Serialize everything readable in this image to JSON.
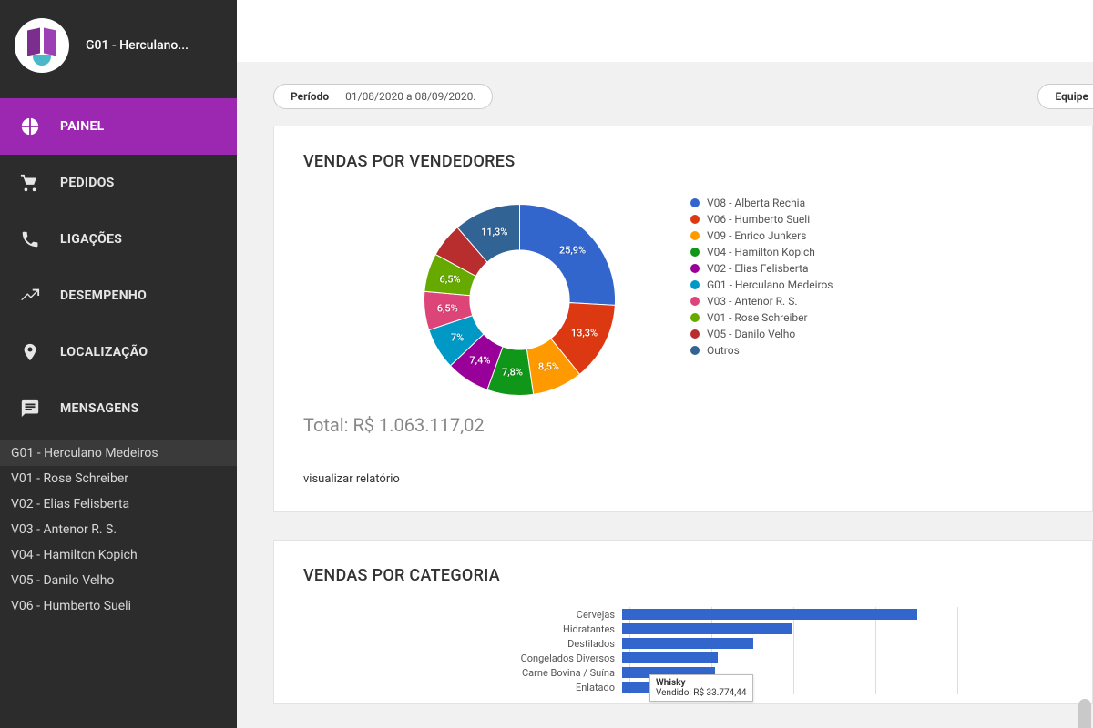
{
  "colors": {
    "sidebar_bg": "#2c2c2c",
    "accent": "#9c27b0",
    "page_bg": "#f1f1f1",
    "card_bg": "#ffffff"
  },
  "profile": {
    "name": "G01 - Herculano..."
  },
  "nav": [
    {
      "label": "PAINEL",
      "icon": "pie",
      "active": true
    },
    {
      "label": "PEDIDOS",
      "icon": "cart",
      "active": false
    },
    {
      "label": "LIGAÇÕES",
      "icon": "phone",
      "active": false
    },
    {
      "label": "DESEMPENHO",
      "icon": "trend",
      "active": false
    },
    {
      "label": "LOCALIZAÇÃO",
      "icon": "pin",
      "active": false
    },
    {
      "label": "MENSAGENS",
      "icon": "message",
      "active": false
    }
  ],
  "sublist": [
    {
      "label": "G01 - Herculano Medeiros",
      "selected": true
    },
    {
      "label": "V01 - Rose Schreiber"
    },
    {
      "label": "V02 - Elias Felisberta"
    },
    {
      "label": "V03 - Antenor R. S."
    },
    {
      "label": "V04 - Hamilton Kopich"
    },
    {
      "label": "V05 - Danilo Velho"
    },
    {
      "label": "V06 - Humberto Sueli"
    }
  ],
  "filters": {
    "period_label": "Período",
    "period_value": "01/08/2020 a 08/09/2020.",
    "team_label": "Equipe"
  },
  "vendas_vendedores": {
    "title": "VENDAS POR VENDEDORES",
    "type": "donut",
    "inner_radius_ratio": 0.52,
    "background_color": "#ffffff",
    "slices": [
      {
        "label": "V08 - Alberta Rechia",
        "pct": 25.9,
        "color": "#3366cc",
        "pct_text": "25,9%"
      },
      {
        "label": "V06 - Humberto Sueli",
        "pct": 13.3,
        "color": "#dc3912",
        "pct_text": "13,3%"
      },
      {
        "label": "V09 - Enrico Junkers",
        "pct": 8.5,
        "color": "#ff9900",
        "pct_text": "8,5%"
      },
      {
        "label": "V04 - Hamilton Kopich",
        "pct": 7.8,
        "color": "#109618",
        "pct_text": "7,8%"
      },
      {
        "label": "V02 - Elias Felisberta",
        "pct": 7.4,
        "color": "#990099",
        "pct_text": "7,4%"
      },
      {
        "label": "G01 - Herculano Medeiros",
        "pct": 7.0,
        "color": "#0099c6",
        "pct_text": "7%"
      },
      {
        "label": "V03 - Antenor R. S.",
        "pct": 6.5,
        "color": "#dd4477",
        "pct_text": "6,5%"
      },
      {
        "label": "V01 - Rose Schreiber",
        "pct": 6.5,
        "color": "#66aa00",
        "pct_text": "6,5%"
      },
      {
        "label": "V05 - Danilo Velho",
        "pct": 5.8,
        "color": "#b82e2e",
        "pct_text": ""
      },
      {
        "label": "Outros",
        "pct": 11.3,
        "color": "#316395",
        "pct_text": "11,3%"
      }
    ],
    "total_label": "Total: R$ 1.063.117,02",
    "view_report": "visualizar relatório"
  },
  "vendas_categoria": {
    "title": "VENDAS POR CATEGORIA",
    "type": "bar-horizontal",
    "bar_color": "#3366cc",
    "grid_color": "#dddddd",
    "xlim": [
      0,
      120000
    ],
    "grid_step": 30000,
    "rows": [
      {
        "label": "Cervejas",
        "value": 108000
      },
      {
        "label": "Hidratantes",
        "value": 62000
      },
      {
        "label": "Destilados",
        "value": 48000
      },
      {
        "label": "Congelados Diversos",
        "value": 35000
      },
      {
        "label": "Carne Bovina / Suína",
        "value": 34000
      },
      {
        "label": "Enlatado",
        "value": 33000
      }
    ],
    "tooltip": {
      "title": "Whisky",
      "line": "Vendido: R$ 33.774,44"
    }
  }
}
